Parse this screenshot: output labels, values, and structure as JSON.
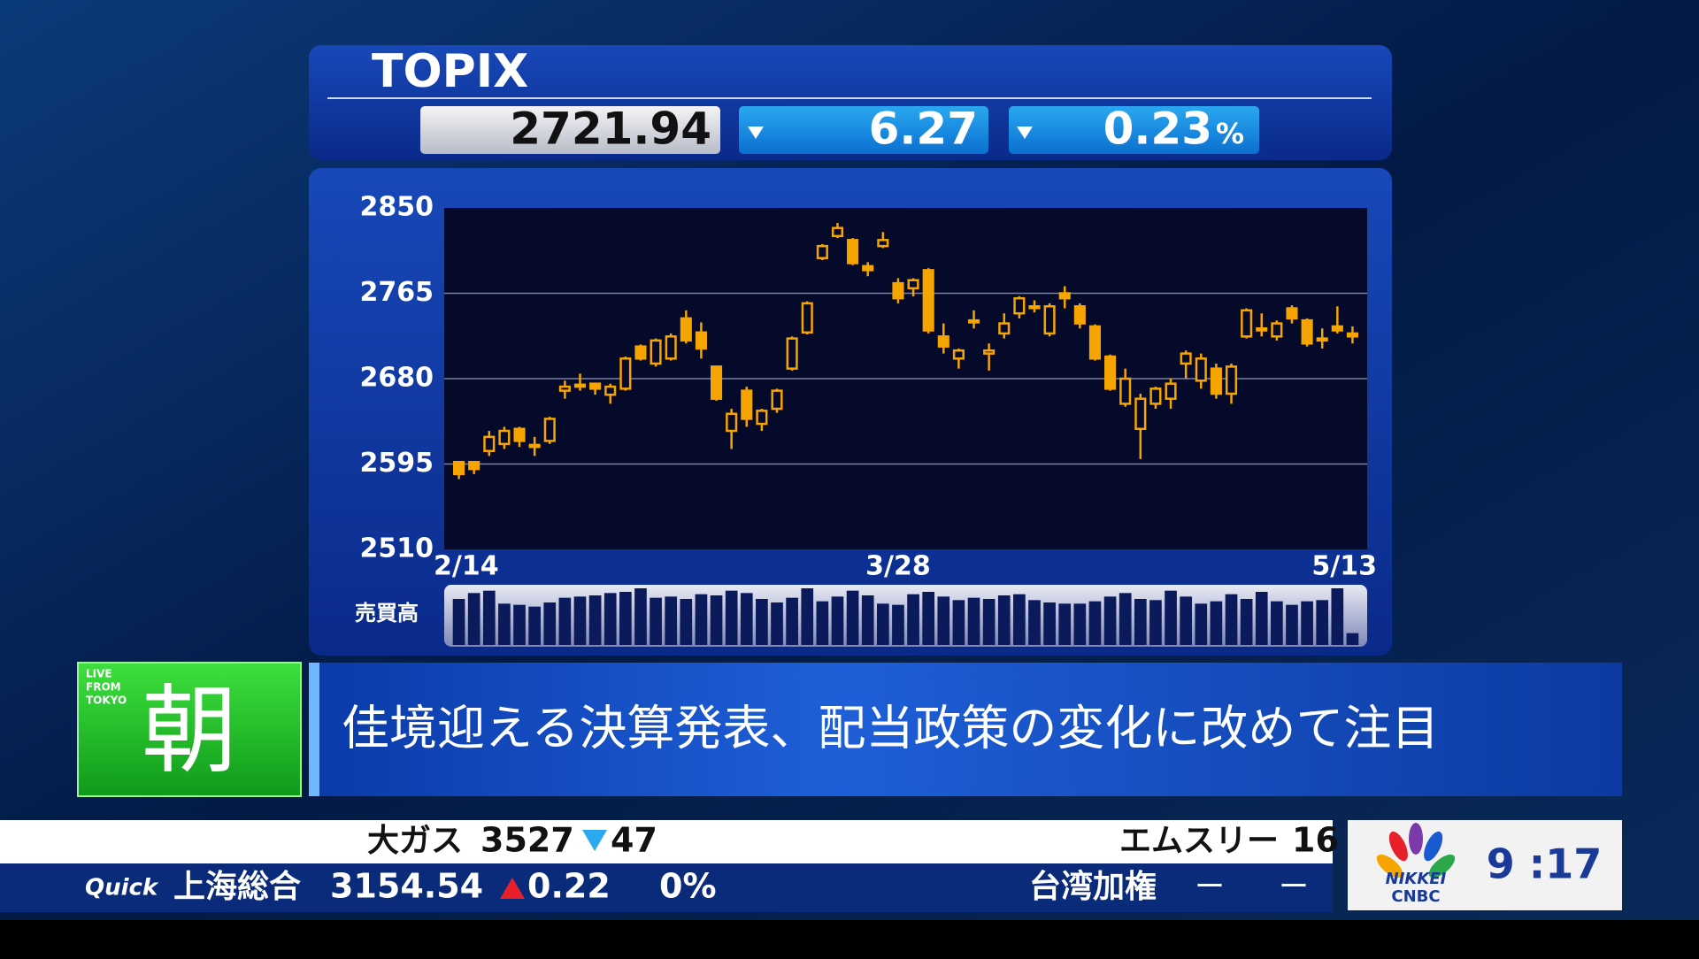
{
  "header": {
    "title": "TOPIX",
    "price": "2721.94",
    "change": "6.27",
    "change_pct": "0.23",
    "pct_unit": "%"
  },
  "chart_data": {
    "type": "candlestick",
    "categories": [
      "2/14",
      null,
      null,
      null,
      null,
      null,
      null,
      null,
      null,
      null,
      null,
      null,
      null,
      null,
      null,
      null,
      null,
      null,
      null,
      null,
      null,
      null,
      null,
      null,
      null,
      null,
      null,
      null,
      null,
      "3/28",
      null,
      null,
      null,
      null,
      null,
      null,
      null,
      null,
      null,
      null,
      null,
      null,
      null,
      null,
      null,
      null,
      null,
      null,
      null,
      null,
      null,
      null,
      null,
      null,
      null,
      null,
      null,
      null,
      null,
      "5/13"
    ],
    "open": [
      2597,
      2597,
      2608,
      2615,
      2630,
      2612,
      2618,
      2668,
      2672,
      2675,
      2664,
      2670,
      2712,
      2695,
      2700,
      2740,
      2726,
      2692,
      2628,
      2668,
      2635,
      2650,
      2690,
      2726,
      2800,
      2822,
      2818,
      2792,
      2812,
      2775,
      2770,
      2788,
      2722,
      2700,
      2738,
      2705,
      2725,
      2745,
      2752,
      2725,
      2765,
      2752,
      2732,
      2702,
      2655,
      2630,
      2655,
      2660,
      2695,
      2678,
      2690,
      2665,
      2722,
      2728,
      2722,
      2750,
      2738,
      2720,
      2732,
      2725
    ],
    "high": [
      2598,
      2598,
      2628,
      2632,
      2632,
      2622,
      2642,
      2678,
      2685,
      2676,
      2675,
      2702,
      2714,
      2720,
      2725,
      2748,
      2736,
      2693,
      2650,
      2672,
      2650,
      2670,
      2722,
      2757,
      2814,
      2835,
      2820,
      2796,
      2826,
      2780,
      2780,
      2790,
      2735,
      2710,
      2748,
      2715,
      2745,
      2762,
      2758,
      2755,
      2772,
      2755,
      2734,
      2704,
      2690,
      2665,
      2672,
      2680,
      2708,
      2705,
      2695,
      2695,
      2750,
      2745,
      2738,
      2753,
      2740,
      2730,
      2752,
      2732
    ],
    "low": [
      2580,
      2585,
      2603,
      2610,
      2612,
      2603,
      2615,
      2660,
      2668,
      2664,
      2655,
      2668,
      2698,
      2692,
      2698,
      2715,
      2700,
      2658,
      2610,
      2632,
      2628,
      2646,
      2688,
      2724,
      2798,
      2820,
      2793,
      2782,
      2810,
      2755,
      2762,
      2725,
      2705,
      2690,
      2730,
      2688,
      2720,
      2740,
      2746,
      2722,
      2750,
      2730,
      2698,
      2668,
      2652,
      2600,
      2650,
      2650,
      2680,
      2670,
      2660,
      2655,
      2720,
      2722,
      2718,
      2735,
      2712,
      2710,
      2725,
      2715
    ],
    "close": [
      2585,
      2590,
      2622,
      2628,
      2618,
      2614,
      2640,
      2672,
      2674,
      2670,
      2672,
      2700,
      2700,
      2718,
      2722,
      2718,
      2710,
      2660,
      2645,
      2640,
      2648,
      2668,
      2720,
      2755,
      2812,
      2830,
      2795,
      2788,
      2818,
      2760,
      2778,
      2728,
      2712,
      2708,
      2736,
      2708,
      2735,
      2760,
      2752,
      2752,
      2760,
      2735,
      2700,
      2670,
      2680,
      2660,
      2670,
      2675,
      2705,
      2700,
      2665,
      2692,
      2748,
      2730,
      2735,
      2740,
      2715,
      2718,
      2728,
      2722
    ],
    "color": "#f5a400",
    "ylim": [
      2510,
      2850
    ],
    "yticks": [
      2510,
      2595,
      2680,
      2765,
      2850
    ],
    "grid": true,
    "volume_label": "売買高",
    "volume": [
      78,
      88,
      92,
      70,
      68,
      65,
      72,
      80,
      82,
      84,
      88,
      90,
      96,
      80,
      82,
      78,
      86,
      84,
      92,
      88,
      78,
      72,
      80,
      96,
      74,
      82,
      92,
      84,
      70,
      68,
      86,
      90,
      82,
      76,
      80,
      78,
      84,
      86,
      76,
      72,
      70,
      70,
      74,
      82,
      88,
      78,
      76,
      92,
      82,
      70,
      74,
      86,
      78,
      90,
      74,
      68,
      74,
      76,
      96,
      20
    ]
  },
  "headline": {
    "badge_small": [
      "LIVE",
      "FROM",
      "TOKYO"
    ],
    "badge": "朝",
    "text": "佳境迎える決算発表、配当政策の変化に改めて注目"
  },
  "ticker": {
    "top": {
      "name": "大ガス",
      "price": "3527",
      "change": "47",
      "next_name": "エムスリー",
      "next_price": "16"
    },
    "bottom": {
      "source": "Quick",
      "name": "上海総合",
      "price": "3154.54",
      "change": "0.22",
      "pct": "0%",
      "next_name": "台湾加権",
      "next_price": "ー",
      "next_change": "ー"
    }
  },
  "corner": {
    "brand_top": "NIKKEI",
    "brand_bottom": "CNBC",
    "time": "9 :17"
  }
}
